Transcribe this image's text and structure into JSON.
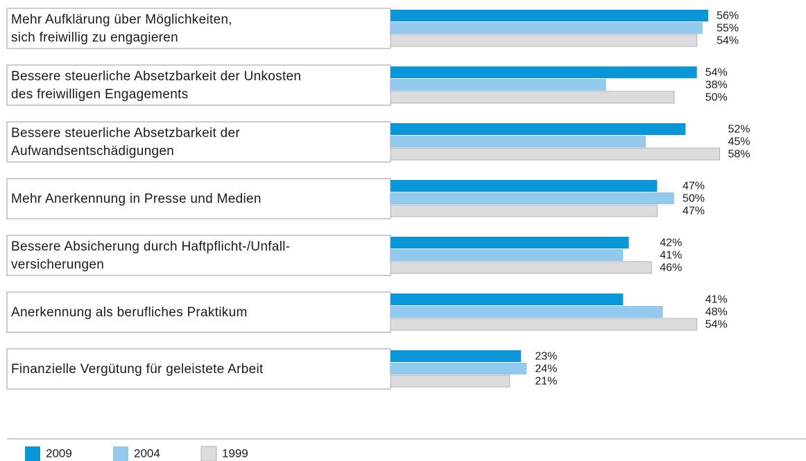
{
  "chart_data": {
    "type": "bar",
    "orientation": "horizontal",
    "categories": [
      [
        "Mehr Aufklärung über Möglichkeiten,",
        "sich freiwillig zu engagieren"
      ],
      [
        "Bessere steuerliche Absetzbarkeit der Unkosten",
        "des freiwilligen Engagements"
      ],
      [
        "Bessere steuerliche Absetzbarkeit der",
        "Aufwandsentschädigungen"
      ],
      [
        "Mehr Anerkennung in Presse und Medien"
      ],
      [
        "Bessere Absicherung durch Haftpflicht-/Unfall-",
        "versicherungen"
      ],
      [
        "Anerkennung als berufliches Praktikum"
      ],
      [
        "Finanzielle Vergütung für geleistete Arbeit"
      ]
    ],
    "series": [
      {
        "name": "2009",
        "color": "#0a97d9",
        "values": [
          56,
          54,
          52,
          47,
          42,
          41,
          23
        ],
        "value_labels": [
          "56%",
          "54%",
          "52%",
          "47%",
          "42%",
          "41%",
          "23%"
        ]
      },
      {
        "name": "2004",
        "color": "#93c9ec",
        "values": [
          55,
          38,
          45,
          50,
          41,
          48,
          24
        ],
        "value_labels": [
          "55%",
          "38%",
          "45%",
          "50%",
          "41%",
          "48%",
          "24%"
        ]
      },
      {
        "name": "1999",
        "color": "#dcdcdc",
        "values": [
          54,
          50,
          58,
          47,
          46,
          54,
          21
        ],
        "value_labels": [
          "54%",
          "50%",
          "58%",
          "47%",
          "46%",
          "54%",
          "21%"
        ]
      }
    ]
  }
}
